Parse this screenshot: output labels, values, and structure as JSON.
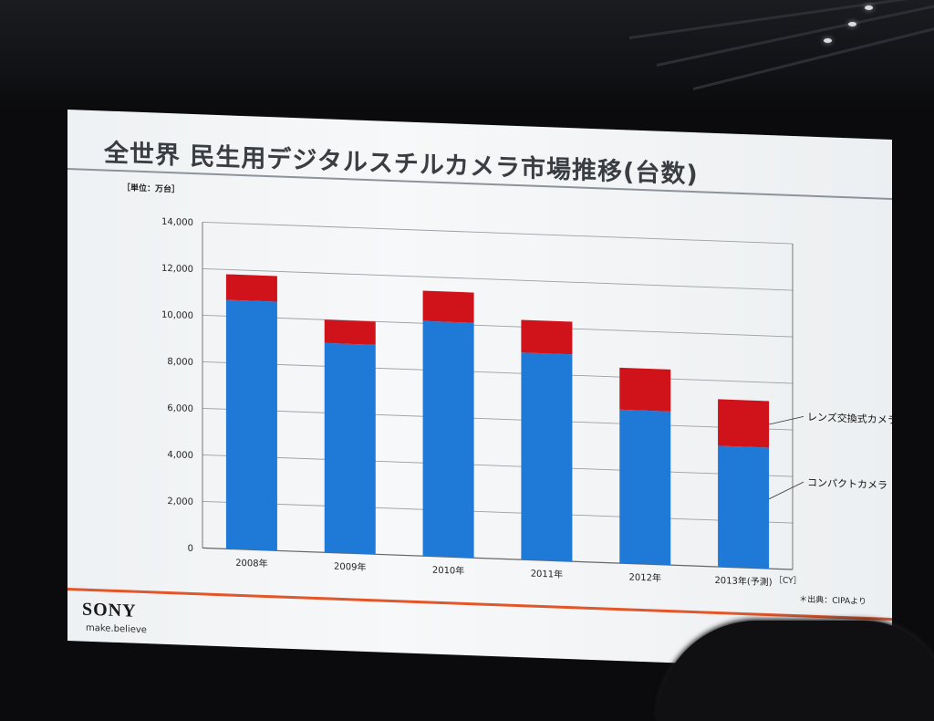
{
  "slide": {
    "title": "全世界 民生用デジタルスチルカメラ市場推移(台数)",
    "source": "＊出典：CIPAより",
    "logo": "SONY",
    "tagline": "make.believe"
  },
  "colors": {
    "compact": "#1f79d6",
    "interchangeable": "#d0131b",
    "accent_rule": "#e2562a"
  },
  "chart_data": {
    "type": "bar",
    "stacked": true,
    "title": "全世界 民生用デジタルスチルカメラ市場推移(台数)",
    "unit_label": "［単位：万台］",
    "xlabel": "［CY］",
    "ylabel": "",
    "ylim": [
      0,
      14000
    ],
    "yticks": [
      "0",
      "2,000",
      "4,000",
      "6,000",
      "8,000",
      "10,000",
      "12,000",
      "14,000"
    ],
    "ytick_values": [
      0,
      2000,
      4000,
      6000,
      8000,
      10000,
      12000,
      14000
    ],
    "grid": true,
    "legend": "right, inline labels",
    "categories": [
      "2008年",
      "2009年",
      "2010年",
      "2011年",
      "2012年",
      "2013年(予測)"
    ],
    "series": [
      {
        "name": "コンパクトカメラ",
        "values": [
          10700,
          9000,
          10100,
          8900,
          6600,
          5200
        ]
      },
      {
        "name": "レンズ交換式カメラ",
        "values": [
          1100,
          1000,
          1300,
          1400,
          1800,
          2000
        ]
      }
    ]
  }
}
